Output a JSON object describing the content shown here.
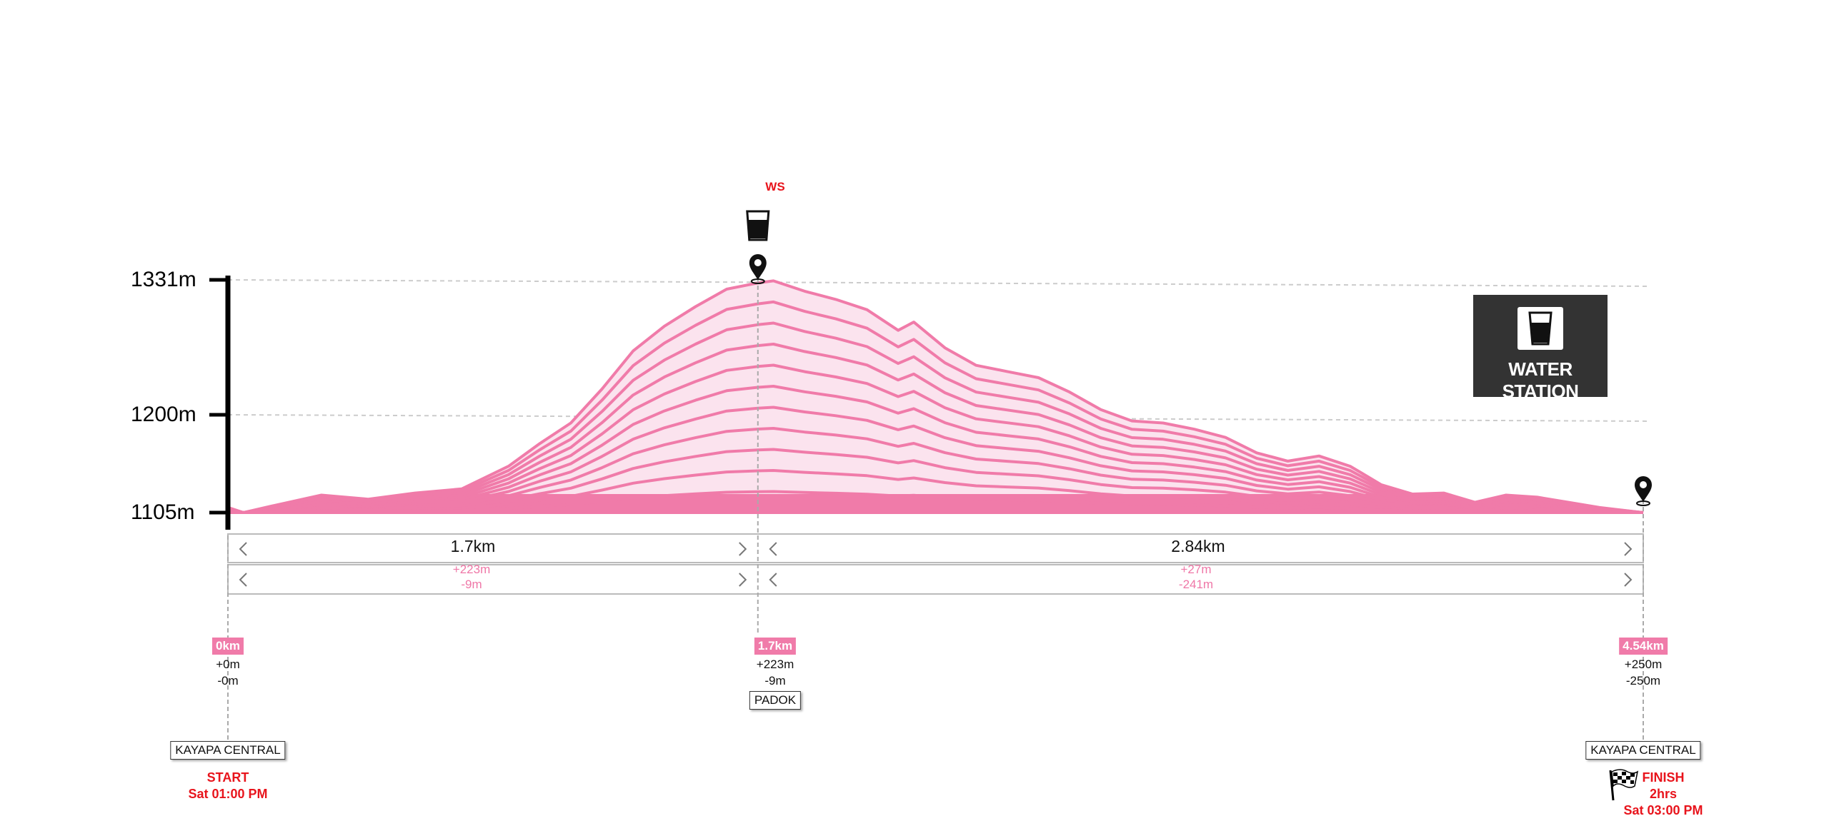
{
  "chart_data": {
    "type": "area",
    "title": "",
    "x_unit": "km",
    "y_unit": "m",
    "x_range": [
      0,
      4.54
    ],
    "ylim": [
      1105,
      1331
    ],
    "y_ticks": [
      "1331m",
      "1200m",
      "1105m"
    ],
    "y_tick_values": [
      1331,
      1200,
      1105
    ],
    "grid": true,
    "series": [
      {
        "x": [
          0,
          0.05,
          0.15,
          0.3,
          0.45,
          0.6,
          0.75,
          0.9,
          1.0,
          1.1,
          1.2,
          1.3,
          1.4,
          1.5,
          1.6,
          1.7,
          1.75,
          1.85,
          1.95,
          2.05,
          2.15,
          2.2,
          2.3,
          2.4,
          2.5,
          2.6,
          2.7,
          2.8,
          2.9,
          3.0,
          3.1,
          3.2,
          3.3,
          3.4,
          3.5,
          3.6,
          3.7,
          3.8,
          3.9,
          4.0,
          4.1,
          4.2,
          4.3,
          4.4,
          4.54
        ],
        "y": [
          1110,
          1105,
          1112,
          1122,
          1118,
          1124,
          1128,
          1150,
          1172,
          1192,
          1225,
          1262,
          1286,
          1305,
          1322,
          1328,
          1330,
          1320,
          1312,
          1302,
          1282,
          1290,
          1265,
          1248,
          1242,
          1236,
          1222,
          1205,
          1194,
          1192,
          1186,
          1178,
          1163,
          1155,
          1160,
          1150,
          1132,
          1123,
          1124,
          1115,
          1122,
          1120,
          1115,
          1110,
          1105
        ]
      }
    ],
    "segments": [
      {
        "distance": "1.7km",
        "gain": "+223m",
        "loss": "-9m"
      },
      {
        "distance": "2.84km",
        "gain": "+27m",
        "loss": "-241m"
      }
    ],
    "waypoints": [
      {
        "km": "0km",
        "gain": "+0m",
        "loss": "-0m",
        "place": "KAYAPA CENTRAL",
        "note": [
          "START",
          "Sat 01:00 PM"
        ]
      },
      {
        "km": "1.7km",
        "gain": "+223m",
        "loss": "-9m",
        "place": "PADOK",
        "marker": "WS"
      },
      {
        "km": "4.54km",
        "gain": "+250m",
        "loss": "-250m",
        "place": "KAYAPA CENTRAL",
        "note": [
          "FINISH",
          "2hrs",
          "Sat 03:00 PM"
        ]
      }
    ],
    "legend": {
      "label": "WATER STATION",
      "icon": "water-glass-icon"
    },
    "colors": {
      "profile": "#f07ba9",
      "highlight": "#e8141c",
      "legend_bg": "#333333"
    }
  }
}
